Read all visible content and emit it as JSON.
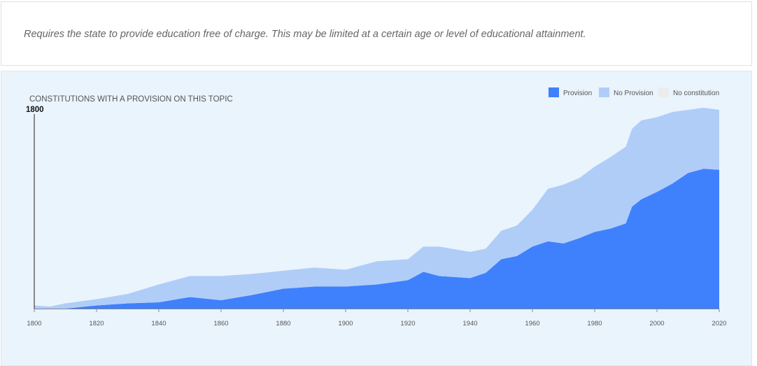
{
  "description": "Requires the state to provide education free of charge. This may be limited at a certain age or level of educational attainment.",
  "chart_data": {
    "type": "area",
    "stacked": true,
    "title": "CONSTITUTIONS WITH A PROVISION ON THIS TOPIC",
    "hover_year": "1800",
    "xlim": [
      1800,
      2020
    ],
    "ylim": [
      0,
      195
    ],
    "x_ticks": [
      "1800",
      "1820",
      "1840",
      "1860",
      "1880",
      "1900",
      "1920",
      "1940",
      "1960",
      "1980",
      "2000",
      "2020"
    ],
    "legend_position": "top-right",
    "legend": [
      {
        "name": "Provision",
        "color": "#3f80fd"
      },
      {
        "name": "No Provision",
        "color": "#b0cdf8"
      },
      {
        "name": "No constitution",
        "color": "#ececec"
      }
    ],
    "x": [
      1800,
      1805,
      1810,
      1820,
      1830,
      1840,
      1850,
      1860,
      1870,
      1880,
      1890,
      1900,
      1910,
      1920,
      1925,
      1930,
      1940,
      1945,
      1950,
      1955,
      1960,
      1965,
      1970,
      1975,
      1980,
      1985,
      1990,
      1992,
      1995,
      2000,
      2005,
      2010,
      2015,
      2020
    ],
    "series": [
      {
        "name": "Provision",
        "values": [
          0,
          0,
          0,
          3,
          5,
          6,
          11,
          8,
          13,
          19,
          21,
          21,
          23,
          27,
          35,
          31,
          29,
          34,
          47,
          50,
          59,
          64,
          62,
          67,
          73,
          76,
          81,
          97,
          104,
          111,
          119,
          129,
          133,
          132
        ]
      },
      {
        "name": "No Provision",
        "values": [
          3,
          2,
          5,
          6,
          9,
          17,
          20,
          23,
          20,
          17,
          18,
          16,
          22,
          20,
          24,
          28,
          25,
          23,
          27,
          29,
          35,
          50,
          56,
          57,
          62,
          68,
          73,
          74,
          75,
          71,
          68,
          60,
          58,
          57
        ]
      }
    ]
  }
}
